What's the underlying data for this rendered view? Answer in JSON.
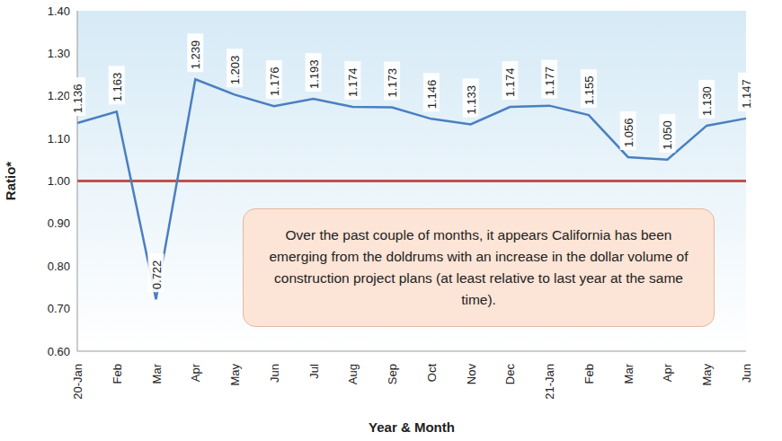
{
  "chart_data": {
    "type": "line",
    "x_label": "Year & Month",
    "y_label": "Ratio*",
    "categories": [
      "20-Jan",
      "Feb",
      "Mar",
      "Apr",
      "May",
      "Jun",
      "Jul",
      "Aug",
      "Sep",
      "Oct",
      "Nov",
      "Dec",
      "21-Jan",
      "Feb",
      "Mar",
      "Apr",
      "May",
      "Jun"
    ],
    "values": [
      1.136,
      1.163,
      0.722,
      1.239,
      1.203,
      1.176,
      1.193,
      1.174,
      1.173,
      1.146,
      1.133,
      1.174,
      1.177,
      1.155,
      1.056,
      1.05,
      1.13,
      1.147
    ],
    "value_labels": [
      "1.136",
      "1.163",
      "0.722",
      "1.239",
      "1.203",
      "1.176",
      "1.193",
      "1.174",
      "1.173",
      "1.146",
      "1.133",
      "1.174",
      "1.177",
      "1.155",
      "1.056",
      "1.050",
      "1.130",
      "1.147"
    ],
    "color": "#4a7fc1",
    "ylim": [
      0.6,
      1.4
    ],
    "yticks": [
      {
        "value": 0.6,
        "label": "0.60"
      },
      {
        "value": 0.7,
        "label": "0.70"
      },
      {
        "value": 0.8,
        "label": "0.80"
      },
      {
        "value": 0.9,
        "label": "0.90"
      },
      {
        "value": 1.0,
        "label": "1.00"
      },
      {
        "value": 1.1,
        "label": "1.10"
      },
      {
        "value": 1.2,
        "label": "1.20"
      },
      {
        "value": 1.3,
        "label": "1.30"
      },
      {
        "value": 1.4,
        "label": "1.40"
      }
    ],
    "grid": false,
    "data_labels": true,
    "reference_line": {
      "value": 1.0,
      "color": "#c0504d"
    },
    "annotations": [
      "Over the past couple of months, it appears California has been emerging from the doldrums with an increase in the dollar volume of construction project plans (at least relative to last year at the same time)."
    ]
  }
}
